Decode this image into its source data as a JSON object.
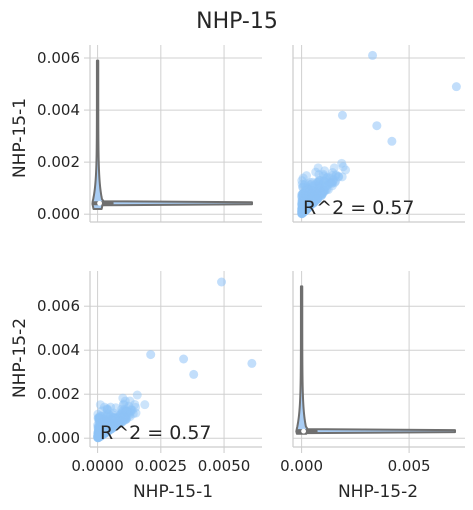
{
  "figure": {
    "title": "NHP-15",
    "row_labels": [
      "NHP-15-1",
      "NHP-15-2"
    ],
    "col_labels": [
      "NHP-15-1",
      "NHP-15-2"
    ]
  },
  "colors": {
    "point": "#8fc3f7",
    "violin_fill": "#a9cdf4",
    "violin_edge": "#6f6f6f",
    "box": "#6f6f6f",
    "grid": "#d0d0d0",
    "spine": "#cccccc"
  },
  "chart_data": [
    {
      "type": "violin",
      "panel": "row1-col1",
      "variable": "NHP-15-1",
      "orientation": "horizontal",
      "ylabel": "NHP-15-1",
      "ylim": [
        -0.0003,
        0.0065
      ],
      "yticks": [
        "0.000",
        "0.002",
        "0.004",
        "0.006"
      ],
      "yticks_values": [
        0,
        0.002,
        0.004,
        0.006
      ],
      "xlim": [
        -0.0003,
        0.0065
      ],
      "distribution": {
        "min": 0.0,
        "max": 0.0063,
        "median": 0.0003,
        "q1": 0.00015,
        "q3": 0.0006
      },
      "grid": true
    },
    {
      "type": "scatter",
      "panel": "row1-col2",
      "x_variable": "NHP-15-2",
      "y_variable": "NHP-15-1",
      "xlim": [
        -0.0004,
        0.0076
      ],
      "ylim": [
        -0.0003,
        0.0065
      ],
      "annotation": "R^2 = 0.57",
      "grid": true
    },
    {
      "type": "scatter",
      "panel": "row2-col1",
      "x_variable": "NHP-15-1",
      "y_variable": "NHP-15-2",
      "xlabel": "NHP-15-1",
      "ylabel": "NHP-15-2",
      "xlim": [
        -0.0003,
        0.0065
      ],
      "xticks": [
        "0.0000",
        "0.0025",
        "0.0050"
      ],
      "xticks_values": [
        0,
        0.0025,
        0.005
      ],
      "ylim": [
        -0.0004,
        0.0076
      ],
      "yticks": [
        "0.000",
        "0.002",
        "0.004",
        "0.006"
      ],
      "yticks_values": [
        0,
        0.002,
        0.004,
        0.006
      ],
      "annotation": "R^2 = 0.57",
      "grid": true
    },
    {
      "type": "violin",
      "panel": "row2-col2",
      "variable": "NHP-15-2",
      "orientation": "horizontal",
      "xlabel": "NHP-15-2",
      "xlim": [
        -0.0004,
        0.0076
      ],
      "xticks": [
        "0.000",
        "0.005"
      ],
      "xticks_values": [
        0,
        0.005
      ],
      "ylim": [
        -0.0004,
        0.0076
      ],
      "distribution": {
        "min": 0.0,
        "max": 0.0073,
        "median": 0.0002,
        "q1": 0.0001,
        "q3": 0.0005
      },
      "grid": true
    }
  ]
}
